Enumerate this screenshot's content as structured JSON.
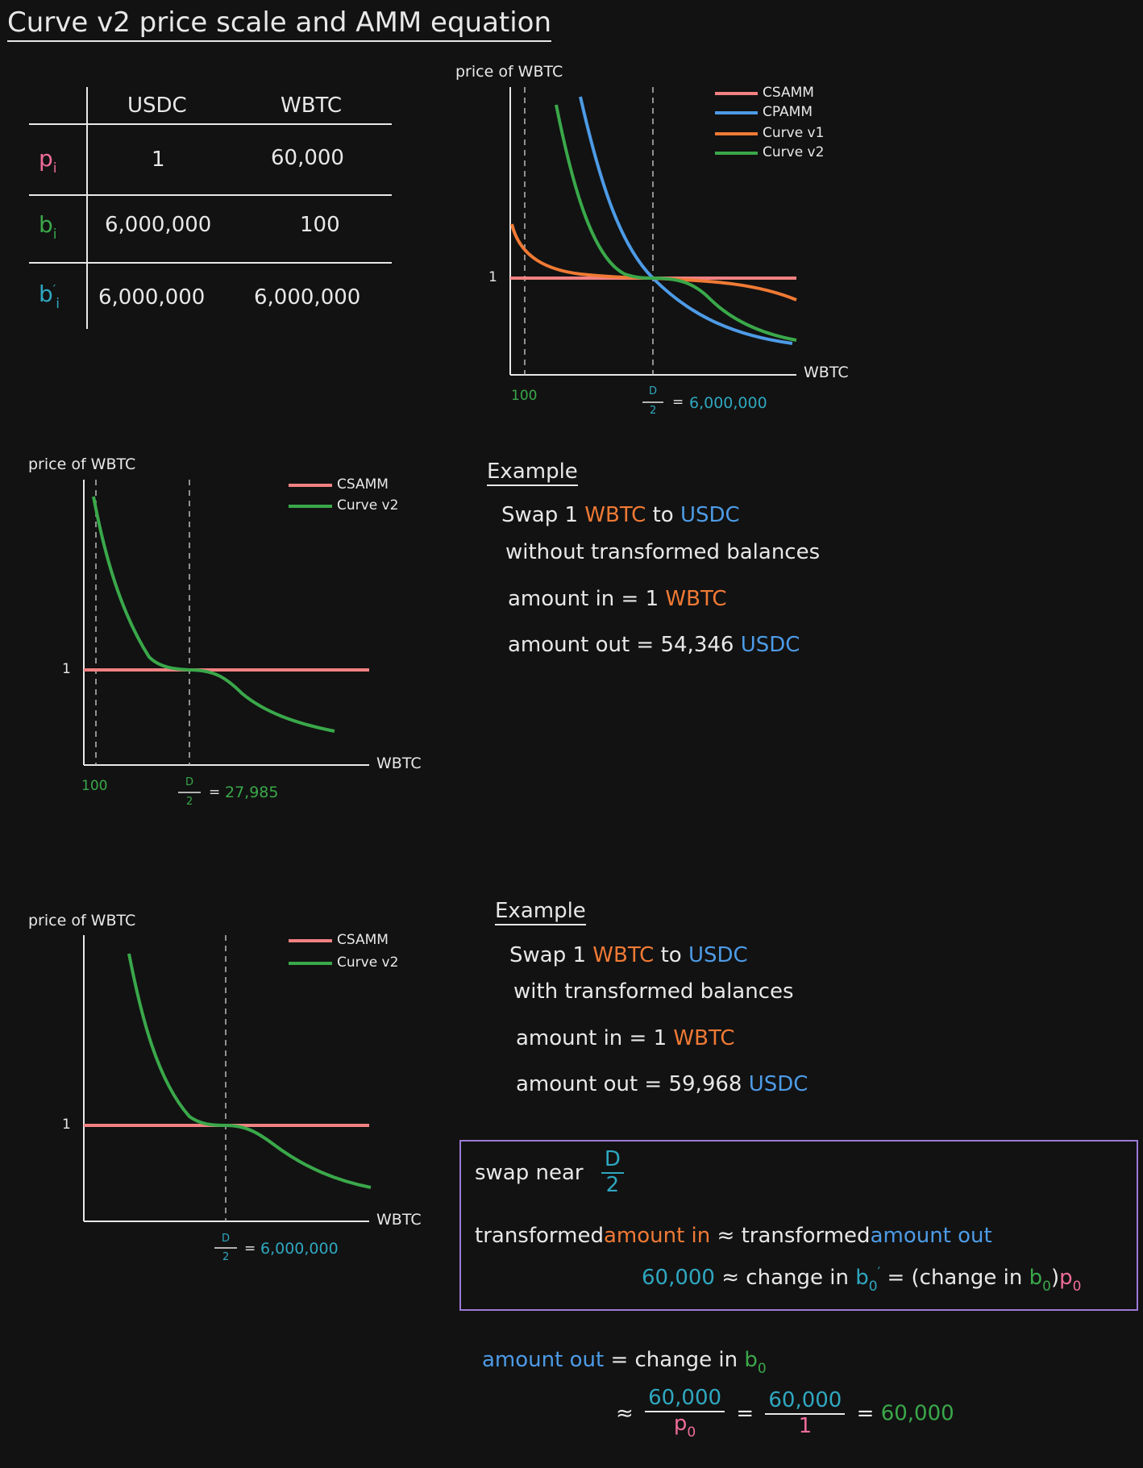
{
  "title": "Curve v2 price scale and AMM equation",
  "table": {
    "columns": [
      "",
      "USDC",
      "WBTC"
    ],
    "rows": [
      {
        "label": "p",
        "label_sub": "i",
        "values": [
          "1",
          "60,000"
        ]
      },
      {
        "label": "b",
        "label_sub": "i",
        "values": [
          "6,000,000",
          "100"
        ]
      },
      {
        "label": "b",
        "label_sub": "i",
        "label_prime": "′",
        "values": [
          "6,000,000",
          "6,000,000"
        ]
      }
    ]
  },
  "colors": {
    "csamm": "#f28182",
    "cpamm": "#4d9be6",
    "curve_v1": "#f07a35",
    "curve_v2": "#3aa84a",
    "axis": "#e8e8e8",
    "box": "#9d79d6",
    "p_label": "#ee6c9a",
    "b_label": "#3aa84a",
    "bprime_label": "#2fa7c0"
  },
  "chart1": {
    "ylabel": "price of WBTC",
    "xlabel": "WBTC",
    "y_tick": "1",
    "x_tick_left": "100",
    "d_num": "D",
    "d_den": "2",
    "d_eq": "=",
    "d_value": "6,000,000",
    "legend": [
      "CSAMM",
      "CPAMM",
      "Curve v1",
      "Curve v2"
    ]
  },
  "chart2": {
    "ylabel": "price of WBTC",
    "xlabel": "WBTC",
    "y_tick": "1",
    "x_tick_left": "100",
    "d_num": "D",
    "d_den": "2",
    "d_eq": "=",
    "d_value": "27,985",
    "legend": [
      "CSAMM",
      "Curve v2"
    ]
  },
  "chart3": {
    "ylabel": "price of WBTC",
    "xlabel": "WBTC",
    "y_tick": "1",
    "d_num": "D",
    "d_den": "2",
    "d_eq": "=",
    "d_value": "6,000,000",
    "legend": [
      "CSAMM",
      "Curve v2"
    ]
  },
  "example1": {
    "heading": "Example",
    "swap_prefix": "Swap 1",
    "token_in": "WBTC",
    "to": "to",
    "token_out": "USDC",
    "note": "without transformed balances",
    "amount_in_label": "amount in = 1",
    "amount_out_label": "amount out = 54,346"
  },
  "example2": {
    "heading": "Example",
    "swap_prefix": "Swap 1",
    "token_in": "WBTC",
    "to": "to",
    "token_out": "USDC",
    "note": "with transformed balances",
    "amount_in_label": "amount in = 1",
    "amount_out_label": "amount out = 59,968"
  },
  "box": {
    "swap_near": "swap near",
    "d_num": "D",
    "d_den": "2",
    "transformed_1": "transformed",
    "amount_in": "amount in",
    "approx": "≈",
    "transformed_2": "transformed",
    "amount_out": "amount out",
    "value": "60,000",
    "change_in": "≈ change in",
    "b": "b",
    "sub0": "0",
    "prime": "′",
    "eq_open": "= (change in",
    "close": ")",
    "p": "p"
  },
  "bottom": {
    "amount_out": "amount out",
    "eq_change": "= change in",
    "b": "b",
    "sub0": "0",
    "approx": "≈",
    "num1": "60,000",
    "den1": "p",
    "eq": "=",
    "num2": "60,000",
    "den2": "1",
    "eq2": "=",
    "result": "60,000"
  }
}
